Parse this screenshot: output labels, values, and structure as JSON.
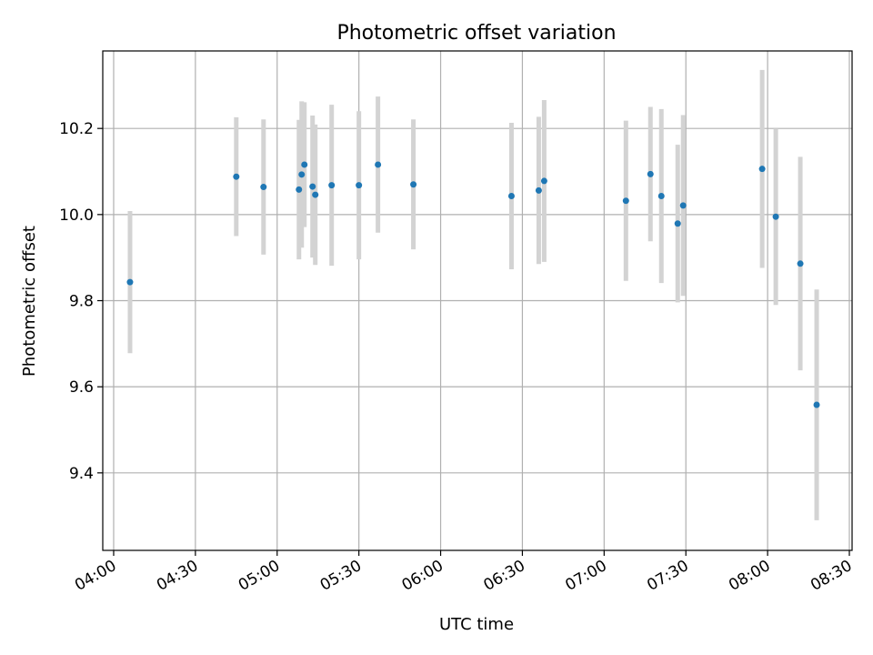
{
  "chart_data": {
    "type": "scatter",
    "title": "Photometric offset variation",
    "xlabel": "UTC time",
    "ylabel": "Photometric offset",
    "grid": true,
    "legend": "none",
    "xlim": [
      "03:56",
      "08:31"
    ],
    "ylim": [
      9.22,
      10.38
    ],
    "x_ticks": [
      "04:00",
      "04:30",
      "05:00",
      "05:30",
      "06:00",
      "06:30",
      "07:00",
      "07:30",
      "08:00",
      "08:30"
    ],
    "y_ticks": [
      "9.4",
      "9.6",
      "9.8",
      "10.0",
      "10.2"
    ],
    "colors": {
      "point": "#1f77b4",
      "errorbar": "#d3d3d3",
      "grid": "#b0b0b0"
    },
    "series": [
      {
        "x": [
          "04:06",
          "04:45",
          "04:55",
          "05:08",
          "05:09",
          "05:10",
          "05:13",
          "05:14",
          "05:20",
          "05:30",
          "05:37",
          "05:50",
          "06:26",
          "06:36",
          "06:38",
          "07:08",
          "07:17",
          "07:21",
          "07:27",
          "07:29",
          "07:58",
          "08:03",
          "08:12",
          "08:18"
        ],
        "y": [
          9.843,
          10.088,
          10.064,
          10.058,
          10.093,
          10.116,
          10.065,
          10.046,
          10.068,
          10.068,
          10.116,
          10.07,
          10.043,
          10.056,
          10.078,
          10.032,
          10.094,
          10.043,
          9.979,
          10.021,
          10.106,
          9.995,
          9.886,
          9.558
        ],
        "err": [
          0.165,
          0.138,
          0.157,
          0.162,
          0.17,
          0.145,
          0.165,
          0.163,
          0.187,
          0.172,
          0.158,
          0.151,
          0.17,
          0.171,
          0.188,
          0.186,
          0.156,
          0.202,
          0.183,
          0.21,
          0.23,
          0.205,
          0.248,
          0.268
        ]
      }
    ]
  }
}
